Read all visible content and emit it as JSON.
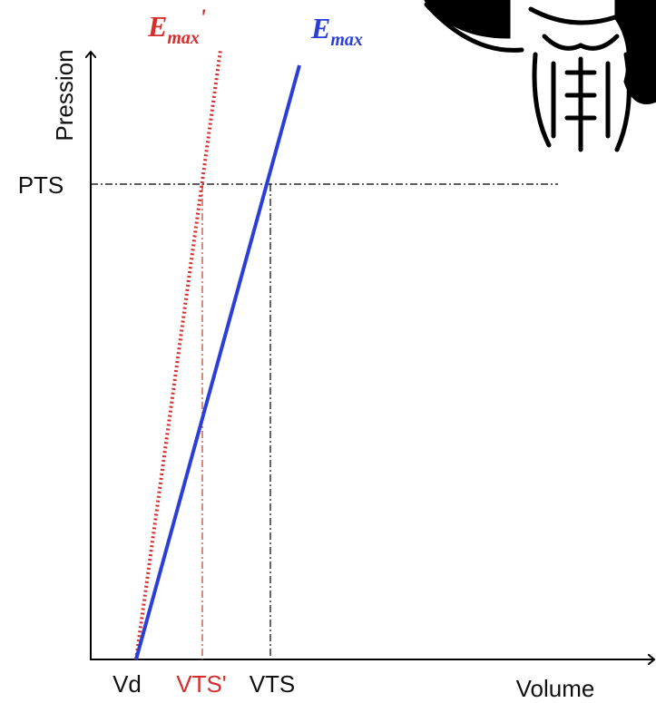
{
  "axes": {
    "y_label": "Pression",
    "x_label": "Volume"
  },
  "labels": {
    "pts": "PTS",
    "vd": "Vd",
    "vts_prime": "VTS'",
    "vts": "VTS"
  },
  "lines": [
    {
      "symbol": "E",
      "subscript": "max",
      "prime": "'"
    },
    {
      "symbol": "E",
      "subscript": "max"
    }
  ]
}
